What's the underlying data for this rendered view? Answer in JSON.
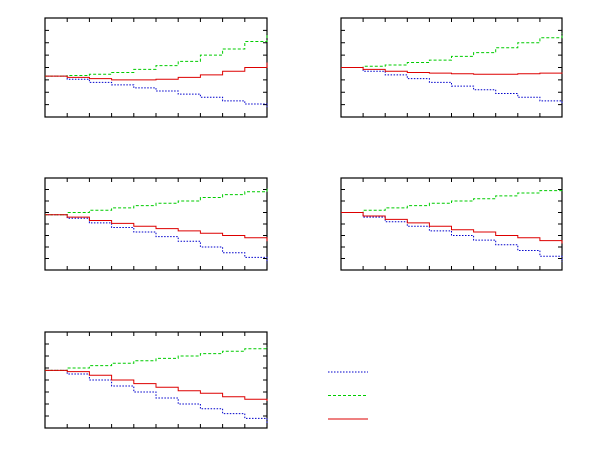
{
  "chart_data": [
    {
      "type": "step",
      "x": [
        0,
        1,
        2,
        3,
        4,
        5,
        6,
        7,
        8,
        9,
        10
      ],
      "xlim": [
        0,
        10
      ],
      "ylim": [
        0,
        8
      ],
      "xticks": [
        0,
        1,
        2,
        3,
        4,
        5,
        6,
        7,
        8,
        9,
        10
      ],
      "yticks": [
        0,
        1,
        2,
        3,
        4,
        5,
        6,
        7,
        8
      ],
      "series": [
        {
          "color": "#0000cc",
          "values": [
            3.3,
            3.05,
            2.8,
            2.6,
            2.35,
            2.1,
            1.85,
            1.6,
            1.3,
            1.05,
            0.8
          ]
        },
        {
          "color": "#00cc00",
          "values": [
            3.3,
            3.35,
            3.45,
            3.6,
            3.85,
            4.15,
            4.5,
            5,
            5.5,
            6.1,
            6.8
          ]
        },
        {
          "color": "#dd0000",
          "values": [
            3.3,
            3.2,
            3.1,
            3.0,
            3.0,
            3.05,
            3.2,
            3.4,
            3.7,
            4.0,
            4.4
          ]
        }
      ]
    },
    {
      "type": "step",
      "x": [
        0,
        1,
        2,
        3,
        4,
        5,
        6,
        7,
        8,
        9,
        10
      ],
      "xlim": [
        0,
        10
      ],
      "ylim": [
        0,
        8
      ],
      "xticks": [
        0,
        1,
        2,
        3,
        4,
        5,
        6,
        7,
        8,
        9,
        10
      ],
      "yticks": [
        0,
        1,
        2,
        3,
        4,
        5,
        6,
        7,
        8
      ],
      "series": [
        {
          "color": "#0000cc",
          "values": [
            4.0,
            3.7,
            3.4,
            3.1,
            2.8,
            2.5,
            2.2,
            1.9,
            1.6,
            1.3,
            1.0
          ]
        },
        {
          "color": "#00cc00",
          "values": [
            4.0,
            4.1,
            4.2,
            4.4,
            4.6,
            4.9,
            5.2,
            5.6,
            6.0,
            6.4,
            6.8
          ]
        },
        {
          "color": "#dd0000",
          "values": [
            4.0,
            3.85,
            3.7,
            3.6,
            3.55,
            3.5,
            3.45,
            3.45,
            3.5,
            3.55,
            3.6
          ]
        }
      ]
    },
    {
      "type": "step",
      "x": [
        0,
        1,
        2,
        3,
        4,
        5,
        6,
        7,
        8,
        9,
        10
      ],
      "xlim": [
        0,
        10
      ],
      "ylim": [
        0,
        8
      ],
      "xticks": [
        0,
        1,
        2,
        3,
        4,
        5,
        6,
        7,
        8,
        9,
        10
      ],
      "yticks": [
        0,
        1,
        2,
        3,
        4,
        5,
        6,
        7,
        8
      ],
      "series": [
        {
          "color": "#0000cc",
          "values": [
            4.8,
            4.5,
            4.1,
            3.7,
            3.3,
            2.9,
            2.5,
            2.0,
            1.5,
            1.1,
            0.6
          ]
        },
        {
          "color": "#00cc00",
          "values": [
            4.8,
            5.0,
            5.2,
            5.4,
            5.6,
            5.8,
            6.0,
            6.3,
            6.55,
            6.8,
            7.1
          ]
        },
        {
          "color": "#dd0000",
          "values": [
            4.8,
            4.6,
            4.3,
            4.05,
            3.8,
            3.6,
            3.4,
            3.2,
            3.0,
            2.8,
            2.5
          ]
        }
      ]
    },
    {
      "type": "step",
      "x": [
        0,
        1,
        2,
        3,
        4,
        5,
        6,
        7,
        8,
        9,
        10
      ],
      "xlim": [
        0,
        10
      ],
      "ylim": [
        0,
        8
      ],
      "xticks": [
        0,
        1,
        2,
        3,
        4,
        5,
        6,
        7,
        8,
        9,
        10
      ],
      "yticks": [
        0,
        1,
        2,
        3,
        4,
        5,
        6,
        7,
        8
      ],
      "series": [
        {
          "color": "#0000cc",
          "values": [
            5.0,
            4.6,
            4.2,
            3.8,
            3.4,
            3.0,
            2.6,
            2.2,
            1.7,
            1.2,
            0.7
          ]
        },
        {
          "color": "#00cc00",
          "values": [
            5.0,
            5.2,
            5.4,
            5.6,
            5.8,
            6.0,
            6.2,
            6.45,
            6.7,
            6.9,
            7.1
          ]
        },
        {
          "color": "#dd0000",
          "values": [
            5.0,
            4.7,
            4.4,
            4.1,
            3.8,
            3.5,
            3.3,
            3.0,
            2.8,
            2.55,
            2.3
          ]
        }
      ]
    },
    {
      "type": "step",
      "x": [
        0,
        1,
        2,
        3,
        4,
        5,
        6,
        7,
        8,
        9,
        10
      ],
      "xlim": [
        0,
        10
      ],
      "ylim": [
        0,
        8
      ],
      "xticks": [
        0,
        1,
        2,
        3,
        4,
        5,
        6,
        7,
        8,
        9,
        10
      ],
      "yticks": [
        0,
        1,
        2,
        3,
        4,
        5,
        6,
        7,
        8
      ],
      "series": [
        {
          "color": "#0000cc",
          "values": [
            4.8,
            4.5,
            4.0,
            3.5,
            3.0,
            2.5,
            2.0,
            1.6,
            1.2,
            0.8,
            0.4
          ]
        },
        {
          "color": "#00cc00",
          "values": [
            4.8,
            5.0,
            5.2,
            5.4,
            5.6,
            5.8,
            6.0,
            6.2,
            6.4,
            6.6,
            6.75
          ]
        },
        {
          "color": "#dd0000",
          "values": [
            4.8,
            4.7,
            4.4,
            4.0,
            3.7,
            3.4,
            3.1,
            2.9,
            2.6,
            2.4,
            2.25
          ]
        }
      ]
    }
  ]
}
